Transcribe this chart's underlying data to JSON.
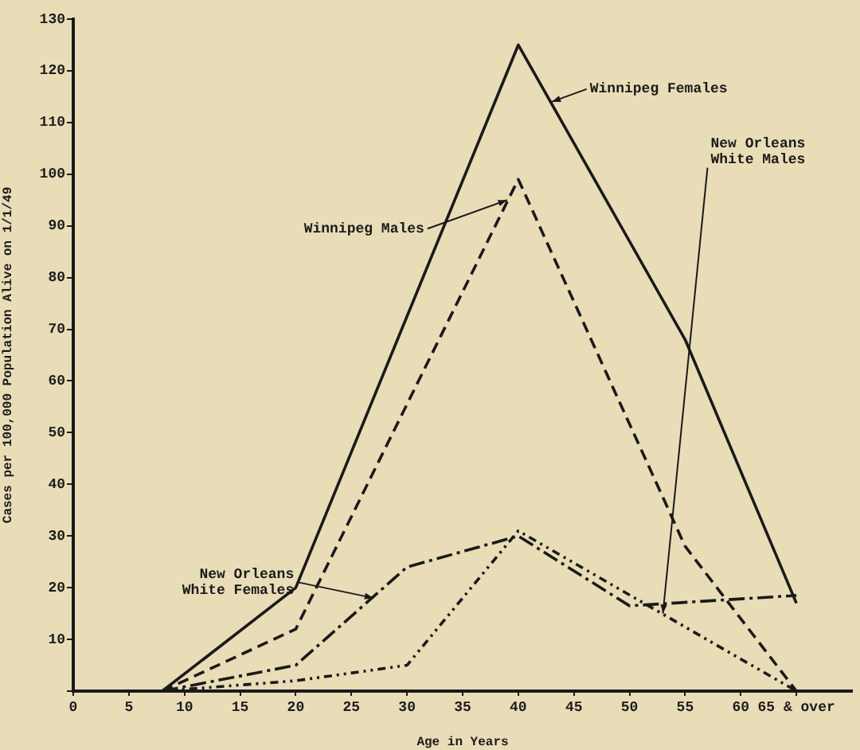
{
  "chart_data": {
    "type": "line",
    "xlabel": "Age in Years",
    "ylabel": "Cases per 100,000 Population Alive on 1/1/49",
    "series": [
      {
        "color": "#1a1a1a",
        "line_style": "solid",
        "x": [
          8,
          20,
          40,
          55,
          65
        ],
        "values": [
          0,
          20,
          125,
          68,
          17
        ]
      },
      {
        "color": "#1a1a1a",
        "line_style": "dashed",
        "x": [
          8,
          20,
          40,
          55,
          65
        ],
        "values": [
          0,
          12,
          99,
          28,
          0
        ]
      },
      {
        "color": "#1a1a1a",
        "line_style": "dashdot",
        "x": [
          8,
          20,
          30,
          40,
          50,
          65
        ],
        "values": [
          0,
          5,
          24,
          30,
          16.5,
          18.5
        ]
      },
      {
        "color": "#1a1a1a",
        "line_style": "dotted",
        "x": [
          8,
          20,
          30,
          40,
          65
        ],
        "values": [
          0,
          2,
          5,
          31,
          0
        ]
      }
    ],
    "annotations": [
      {
        "text": "Winnipeg Females",
        "x": 43,
        "y": 114
      },
      {
        "text": "Winnipeg Males",
        "x": 39,
        "y": 95
      },
      {
        "text": "New Orleans\nWhite Females",
        "x": 27,
        "y": 18
      },
      {
        "text": "New Orleans\nWhite Males",
        "x": 53,
        "y": 15
      }
    ],
    "xlim": [
      0,
      70
    ],
    "xticks": [
      0,
      5,
      10,
      15,
      20,
      25,
      30,
      35,
      40,
      45,
      50,
      55,
      60,
      {
        "value": 65,
        "label": "65 & over"
      }
    ],
    "ylim": [
      0,
      130
    ],
    "yticks": [
      {
        "value": 0,
        "label": null
      },
      10,
      20,
      30,
      40,
      50,
      60,
      70,
      80,
      90,
      100,
      110,
      120,
      130
    ],
    "grid": false,
    "legend": false,
    "marker": "none"
  }
}
